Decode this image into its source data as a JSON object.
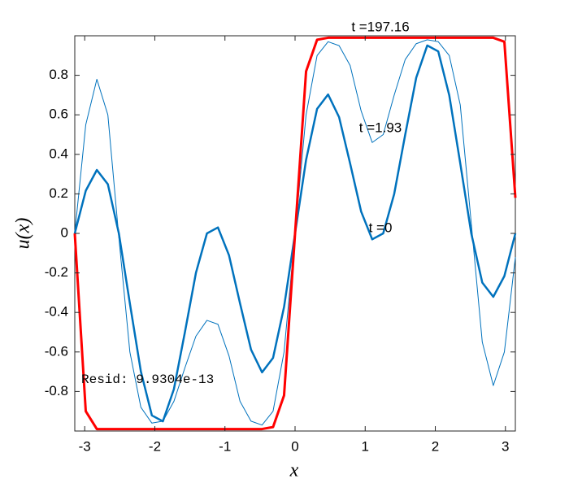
{
  "chart_data": {
    "type": "line",
    "xlabel": "x",
    "ylabel": "u(x)",
    "annotations": [
      "t =197.16",
      "t =1.93",
      "t =0",
      "Resid: 9.9304e-13"
    ],
    "x": [
      -3.142,
      -2.985,
      -2.827,
      -2.67,
      -2.513,
      -2.356,
      -2.199,
      -2.042,
      -1.885,
      -1.728,
      -1.571,
      -1.414,
      -1.257,
      -1.1,
      -0.942,
      -0.785,
      -0.628,
      -0.471,
      -0.314,
      -0.157,
      0,
      0.157,
      0.314,
      0.471,
      0.628,
      0.785,
      0.942,
      1.1,
      1.257,
      1.414,
      1.571,
      1.728,
      1.885,
      2.042,
      2.199,
      2.356,
      2.513,
      2.67,
      2.827,
      2.985,
      3.142
    ],
    "series": [
      {
        "color": "#0072BD",
        "width": 2.5,
        "values": [
          0,
          0.216,
          0.321,
          0.249,
          0,
          -0.354,
          -0.699,
          -0.921,
          -0.951,
          -0.788,
          -0.5,
          -0.2,
          0,
          0.03,
          -0.111,
          -0.354,
          -0.588,
          -0.703,
          -0.63,
          -0.372,
          0,
          0.372,
          0.63,
          0.703,
          0.588,
          0.354,
          0.111,
          -0.03,
          0,
          0.2,
          0.5,
          0.788,
          0.951,
          0.921,
          0.699,
          0.354,
          0,
          -0.249,
          -0.321,
          -0.216,
          0
        ]
      },
      {
        "color": "#0072BD",
        "width": 1,
        "values": [
          0,
          0.55,
          0.78,
          0.6,
          -0.02,
          -0.6,
          -0.88,
          -0.96,
          -0.95,
          -0.85,
          -0.68,
          -0.52,
          -0.44,
          -0.46,
          -0.62,
          -0.85,
          -0.95,
          -0.97,
          -0.9,
          -0.6,
          0,
          0.6,
          0.9,
          0.97,
          0.95,
          0.85,
          0.62,
          0.46,
          0.5,
          0.7,
          0.88,
          0.96,
          0.98,
          0.97,
          0.9,
          0.65,
          0.05,
          -0.55,
          -0.77,
          -0.6,
          -0.12
        ]
      },
      {
        "color": "#FF0000",
        "width": 3,
        "values": [
          0,
          -0.9,
          -0.99,
          -0.99,
          -0.99,
          -0.99,
          -0.99,
          -0.99,
          -0.99,
          -0.99,
          -0.99,
          -0.99,
          -0.99,
          -0.99,
          -0.99,
          -0.99,
          -0.99,
          -0.99,
          -0.98,
          -0.82,
          0,
          0.82,
          0.98,
          0.99,
          0.99,
          0.99,
          0.99,
          0.99,
          0.99,
          0.99,
          0.99,
          0.99,
          0.99,
          0.99,
          0.99,
          0.99,
          0.99,
          0.99,
          0.99,
          0.97,
          0.18
        ]
      }
    ],
    "xlim": [
      -3.1416,
      3.1416
    ],
    "ylim": [
      -1,
      1
    ],
    "xticks": [
      -3,
      -2,
      -1,
      0,
      1,
      2,
      3
    ],
    "yticks": [
      -0.8,
      -0.6,
      -0.4,
      -0.2,
      0,
      0.2,
      0.4,
      0.6,
      0.8
    ],
    "grid": false
  }
}
